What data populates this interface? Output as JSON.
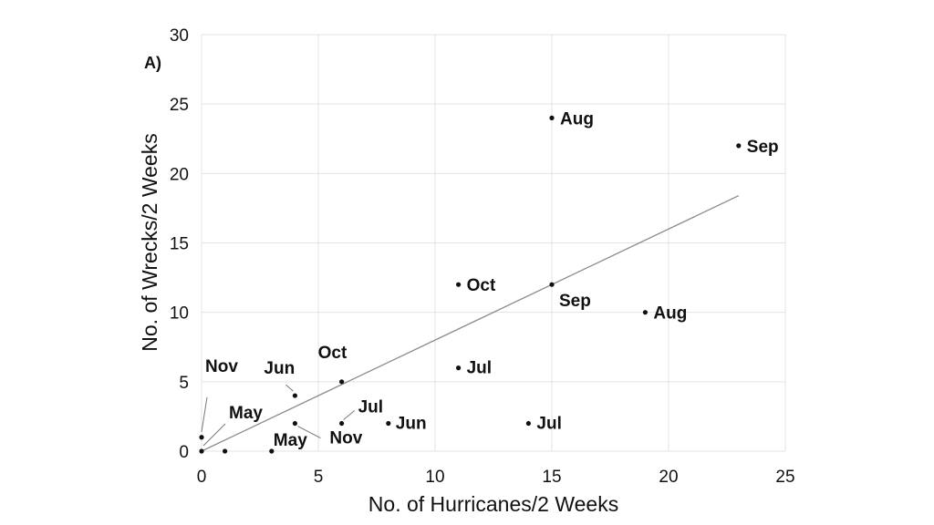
{
  "chart_data": {
    "type": "scatter",
    "panel_label": "A)",
    "xlabel": "No. of Hurricanes/2 Weeks",
    "ylabel": "No. of Wrecks/2 Weeks",
    "xlim": [
      0,
      25
    ],
    "ylim": [
      0,
      30
    ],
    "xticks": [
      0,
      5,
      10,
      15,
      20,
      25
    ],
    "yticks": [
      0,
      5,
      10,
      15,
      20,
      25,
      30
    ],
    "grid": true,
    "points": [
      {
        "x": 0,
        "y": 1,
        "label": "Nov"
      },
      {
        "x": 0,
        "y": 0,
        "label": "May"
      },
      {
        "x": 1,
        "y": 0,
        "label": ""
      },
      {
        "x": 3,
        "y": 0,
        "label": "May"
      },
      {
        "x": 4,
        "y": 4,
        "label": "Jun"
      },
      {
        "x": 4,
        "y": 2,
        "label": "Nov"
      },
      {
        "x": 6,
        "y": 5,
        "label": "Oct"
      },
      {
        "x": 6,
        "y": 2,
        "label": "Jul"
      },
      {
        "x": 8,
        "y": 2,
        "label": "Jun"
      },
      {
        "x": 11,
        "y": 12,
        "label": "Oct"
      },
      {
        "x": 11,
        "y": 6,
        "label": "Jul"
      },
      {
        "x": 14,
        "y": 2,
        "label": "Jul"
      },
      {
        "x": 15,
        "y": 24,
        "label": "Aug"
      },
      {
        "x": 15,
        "y": 12,
        "label": "Sep"
      },
      {
        "x": 19,
        "y": 10,
        "label": "Aug"
      },
      {
        "x": 23,
        "y": 22,
        "label": "Sep"
      }
    ],
    "trendline": {
      "x": [
        0,
        23
      ],
      "y": [
        0,
        18.4
      ]
    }
  },
  "colors": {
    "points": "#111111",
    "grid": "#e3e3e3",
    "trendline": "#8a8a8a"
  }
}
